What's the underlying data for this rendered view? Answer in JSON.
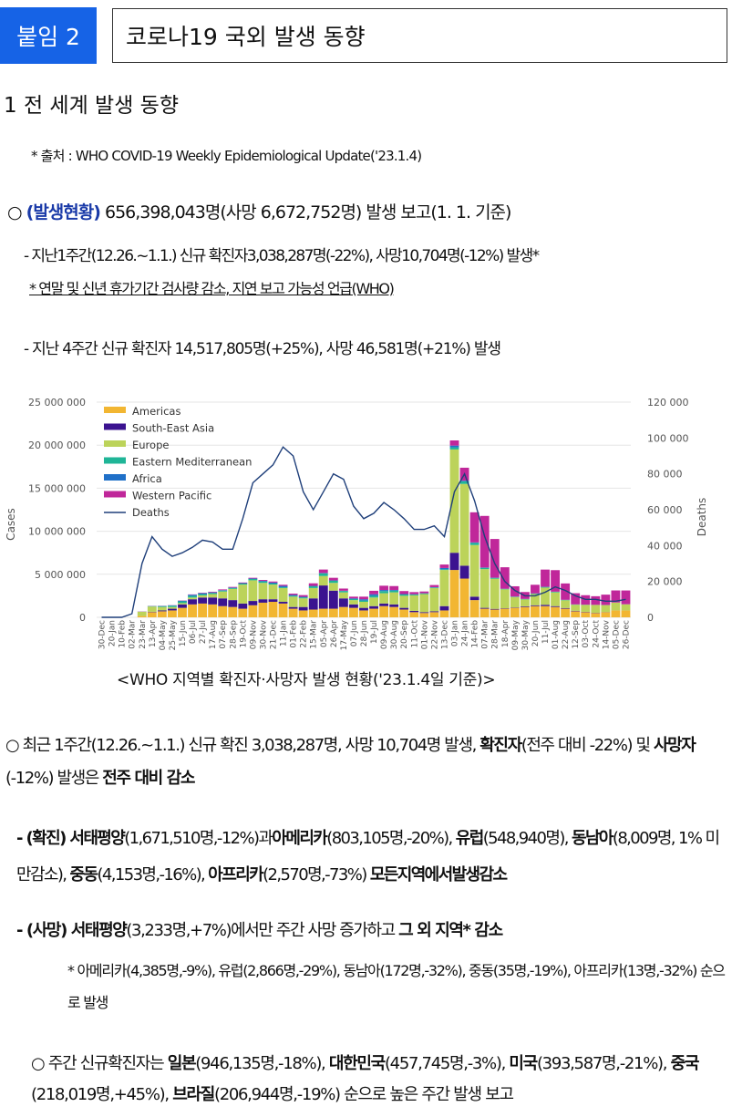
{
  "header": {
    "badge": "붙임 2",
    "title": "코로나19 국외 발생 동향"
  },
  "section1": "1 전 세계 발생 동향",
  "source": "* 출처 : WHO COVID-19 Weekly Epidemiological Update('23.1.4)",
  "summary": {
    "bullet": "○",
    "label": "(발생현황)",
    "text": " 656,398,043명(사망 6,672,752명) 발생 보고(1. 1. 기준)"
  },
  "line_week": "- 지난1주간(12.26.~1.1.) 신규 확진자3,038,287명(-22%), 사망10,704명(-12%) 발생*",
  "note_holiday": "* 연말 및 신년 휴가기간 검사량 감소, 지연 보고 가능성 언급(WHO)",
  "line_4weeks": "- 지난 4주간 신규 확진자 14,517,805명(+25%), 사망 46,581명(+21%) 발생",
  "caption": "<WHO 지역별 확진자·사망자 발생 현황('23.1.4일 기준)>",
  "para1": {
    "a": "○ 최근 1주간(12.26.~1.1.) 신규 확진 3,038,287명, 사망 10,704명 발생, ",
    "b": "확진자",
    "c": "(전주 대비 -22%) 및 ",
    "d": "사망자",
    "e": "(-12%) 발생은 ",
    "f": "전주 대비 감소"
  },
  "para2": {
    "a": "- (확진) 서태평양",
    "b": "(1,671,510명,-12%)과",
    "c": "아메리카",
    "d": "(803,105명,-20%), ",
    "e": "유럽",
    "f": "(548,940명), ",
    "g": "동남아",
    "h": "(8,009명, 1% 미만감소), ",
    "i": "중동",
    "j": "(4,153명,-16%), ",
    "k": "아프리카",
    "l": "(2,570명,-73%) ",
    "m": "모든지역에서발생감소"
  },
  "para3": {
    "a": "- (사망) 서태평양",
    "b": "(3,233명,+7%)에서만 주간 사망 증가하고 ",
    "c": "그 외 지역* 감소"
  },
  "para4": "* 아메리카(4,385명,-9%), 유럽(2,866명,-29%), 동남아(172명,-32%), 중동(35명,-19%), 아프리카(13명,-32%) 순으로 발생",
  "para5": {
    "a": "○  주간 신규확진자는 ",
    "b": "일본",
    "c": "(946,135명,-18%), ",
    "d": "대한민국",
    "e": "(457,745명,-3%), ",
    "f": "미국",
    "g": "(393,587명,-21%), ",
    "h": "중국",
    "i": "(218,019명,+45%), ",
    "j": "브라질",
    "k": "(206,944명,-19%) 순으로 높은 주간 발생 보고"
  },
  "chart_data": {
    "type": "bar",
    "stacked": true,
    "ylabel": "Cases",
    "y2label": "Deaths",
    "ylim": [
      0,
      25000000
    ],
    "y2lim": [
      0,
      120000
    ],
    "yticks": [
      "0",
      "5 000 000",
      "10 000 000",
      "15 000 000",
      "20 000 000",
      "25 000 000"
    ],
    "y2ticks": [
      "0",
      "20 000",
      "40 000",
      "60 000",
      "80 000",
      "100 000",
      "120 000"
    ],
    "legend_position": "top-left",
    "categories": [
      "30-Dec",
      "20-Jan",
      "10-Feb",
      "02-Mar",
      "23-Mar",
      "13-Apr",
      "04-May",
      "25-May",
      "15-Jun",
      "06-Jul",
      "27-Jul",
      "17-Aug",
      "07-Sep",
      "28-Sep",
      "19-Oct",
      "09-Nov",
      "30-Nov",
      "21-Dec",
      "11-Jan",
      "01-Feb",
      "22-Feb",
      "15-Mar",
      "05-Apr",
      "26-Apr",
      "17-May",
      "07-Jun",
      "28-Jun",
      "19-Jul",
      "09-Aug",
      "30-Aug",
      "20-Sep",
      "11-Oct",
      "01-Nov",
      "22-Nov",
      "13-Dec",
      "03-Jan",
      "24-Jan",
      "14-Feb",
      "07-Mar",
      "28-Mar",
      "18-Apr",
      "09-May",
      "30-May",
      "20-Jun",
      "11-Jul",
      "01-Aug",
      "22-Aug",
      "12-Sep",
      "03-Oct",
      "24-Oct",
      "14-Nov",
      "05-Dec",
      "26-Dec"
    ],
    "series": [
      {
        "name": "Americas",
        "color": "#f2b632",
        "values": [
          0,
          0,
          0,
          0,
          150000,
          600000,
          700000,
          800000,
          1100000,
          1500000,
          1600000,
          1500000,
          1300000,
          1200000,
          1000000,
          1400000,
          1700000,
          1800000,
          1600000,
          1000000,
          800000,
          900000,
          1000000,
          1000000,
          1200000,
          1100000,
          800000,
          1000000,
          1300000,
          1200000,
          900000,
          600000,
          500000,
          600000,
          800000,
          5500000,
          4500000,
          2000000,
          1000000,
          900000,
          1000000,
          1100000,
          1200000,
          1300000,
          1300000,
          1200000,
          1000000,
          700000,
          600000,
          500000,
          600000,
          800000,
          800000
        ]
      },
      {
        "name": "South-East Asia",
        "color": "#3b1390",
        "values": [
          0,
          0,
          0,
          0,
          0,
          50000,
          100000,
          200000,
          400000,
          600000,
          700000,
          800000,
          900000,
          800000,
          600000,
          500000,
          400000,
          300000,
          200000,
          200000,
          400000,
          1300000,
          2700000,
          2100000,
          1000000,
          400000,
          300000,
          300000,
          300000,
          300000,
          200000,
          150000,
          100000,
          100000,
          500000,
          2000000,
          1500000,
          400000,
          100000,
          80000,
          50000,
          50000,
          80000,
          100000,
          150000,
          100000,
          80000,
          60000,
          40000,
          30000,
          20000,
          10000,
          10000
        ]
      },
      {
        "name": "Europe",
        "color": "#bcd35a",
        "values": [
          0,
          0,
          0,
          0,
          500000,
          600000,
          400000,
          200000,
          150000,
          200000,
          250000,
          400000,
          800000,
          1300000,
          2200000,
          2400000,
          1900000,
          1700000,
          1600000,
          1200000,
          1000000,
          1200000,
          1100000,
          900000,
          700000,
          500000,
          700000,
          1000000,
          1200000,
          1400000,
          1400000,
          1800000,
          2100000,
          2700000,
          4200000,
          12000000,
          9500000,
          6000000,
          4500000,
          3500000,
          2200000,
          1200000,
          800000,
          1300000,
          2000000,
          1600000,
          900000,
          700000,
          800000,
          900000,
          800000,
          900000,
          700000
        ]
      },
      {
        "name": "Eastern Mediterranean",
        "color": "#1fb597",
        "values": [
          0,
          0,
          0,
          0,
          10000,
          50000,
          100000,
          150000,
          200000,
          200000,
          150000,
          120000,
          100000,
          100000,
          120000,
          150000,
          160000,
          120000,
          100000,
          100000,
          120000,
          200000,
          300000,
          250000,
          150000,
          120000,
          150000,
          200000,
          250000,
          200000,
          150000,
          100000,
          80000,
          70000,
          80000,
          250000,
          300000,
          250000,
          150000,
          100000,
          50000,
          40000,
          40000,
          50000,
          70000,
          60000,
          40000,
          30000,
          20000,
          15000,
          10000,
          8000,
          5000
        ]
      },
      {
        "name": "Africa",
        "color": "#2070c8",
        "values": [
          0,
          0,
          0,
          0,
          5000,
          10000,
          20000,
          40000,
          80000,
          120000,
          100000,
          80000,
          60000,
          50000,
          50000,
          60000,
          80000,
          120000,
          150000,
          100000,
          60000,
          50000,
          50000,
          40000,
          40000,
          80000,
          150000,
          180000,
          120000,
          80000,
          50000,
          30000,
          20000,
          30000,
          150000,
          200000,
          80000,
          50000,
          30000,
          20000,
          15000,
          15000,
          20000,
          30000,
          25000,
          20000,
          15000,
          10000,
          8000,
          5000,
          4000,
          4000,
          3000
        ]
      },
      {
        "name": "Western Pacific",
        "color": "#c0279a",
        "values": [
          0,
          0,
          0,
          0,
          20000,
          20000,
          20000,
          20000,
          30000,
          40000,
          50000,
          70000,
          80000,
          80000,
          70000,
          80000,
          100000,
          120000,
          130000,
          150000,
          200000,
          300000,
          400000,
          300000,
          250000,
          200000,
          300000,
          400000,
          500000,
          450000,
          350000,
          250000,
          200000,
          250000,
          400000,
          600000,
          1500000,
          3500000,
          6000000,
          4500000,
          2500000,
          1200000,
          800000,
          1000000,
          2000000,
          2500000,
          1900000,
          1300000,
          1100000,
          1000000,
          1200000,
          1400000,
          1600000
        ]
      }
    ],
    "deaths": {
      "name": "Deaths",
      "color": "#1f3f7a",
      "values": [
        0,
        0,
        0,
        2000,
        30000,
        45000,
        38000,
        34000,
        36000,
        39000,
        43000,
        42000,
        38000,
        38000,
        55000,
        75000,
        80000,
        85000,
        95000,
        90000,
        70000,
        60000,
        70000,
        80000,
        77000,
        62000,
        55000,
        58000,
        64000,
        60000,
        55000,
        49000,
        49000,
        51000,
        45000,
        70000,
        80000,
        65000,
        45000,
        30000,
        20000,
        15000,
        12000,
        12000,
        14000,
        17000,
        15000,
        12000,
        10000,
        10000,
        9000,
        9000,
        10000
      ]
    }
  }
}
